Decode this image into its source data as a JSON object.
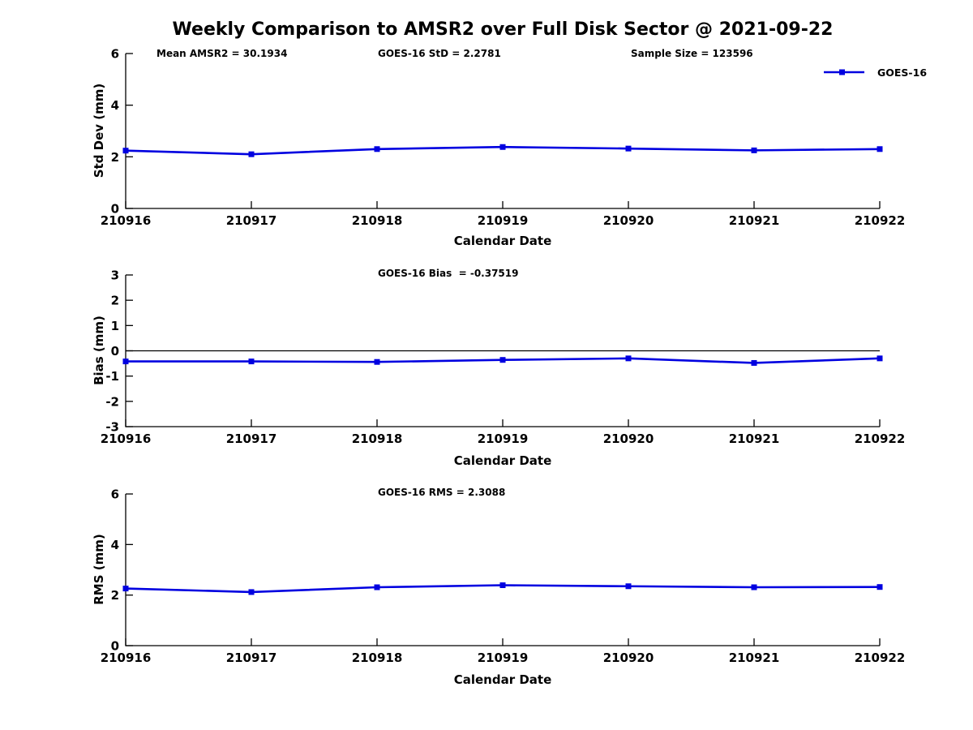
{
  "figure": {
    "title": "Weekly Comparison to AMSR2 over Full Disk Sector @ 2021-09-22"
  },
  "legend": {
    "label": "GOES-16"
  },
  "colors": {
    "series": "#0000e0",
    "axis": "#000000",
    "zero_line": "#000000",
    "background": "#ffffff"
  },
  "chart_data": [
    {
      "type": "line",
      "name": "std-dev",
      "annotations": [
        {
          "text": "Mean AMSR2 = 30.1934"
        },
        {
          "text": "GOES-16 StD = 2.2781"
        },
        {
          "text": "Sample Size = 123596"
        }
      ],
      "categories": [
        "210916",
        "210917",
        "210918",
        "210919",
        "210920",
        "210921",
        "210922"
      ],
      "series": [
        {
          "name": "GOES-16",
          "values": [
            2.24,
            2.1,
            2.3,
            2.38,
            2.32,
            2.25,
            2.3
          ]
        }
      ],
      "xlabel": "Calendar Date",
      "ylabel": "Std Dev (mm)",
      "ylim": [
        0,
        6
      ],
      "yticks": [
        0,
        2,
        4,
        6
      ],
      "zero_line": false,
      "legend_position": "top-right-outside",
      "grid": false
    },
    {
      "type": "line",
      "name": "bias",
      "annotations": [
        {
          "text": "GOES-16 Bias  = -0.37519"
        }
      ],
      "categories": [
        "210916",
        "210917",
        "210918",
        "210919",
        "210920",
        "210921",
        "210922"
      ],
      "series": [
        {
          "name": "GOES-16",
          "values": [
            -0.42,
            -0.42,
            -0.44,
            -0.36,
            -0.3,
            -0.48,
            -0.3
          ]
        }
      ],
      "xlabel": "Calendar Date",
      "ylabel": "Bias (mm)",
      "ylim": [
        -3,
        3
      ],
      "yticks": [
        -3,
        -2,
        -1,
        0,
        1,
        2,
        3
      ],
      "zero_line": true,
      "grid": false
    },
    {
      "type": "line",
      "name": "rms",
      "annotations": [
        {
          "text": "GOES-16 RMS = 2.3088"
        }
      ],
      "categories": [
        "210916",
        "210917",
        "210918",
        "210919",
        "210920",
        "210921",
        "210922"
      ],
      "series": [
        {
          "name": "GOES-16",
          "values": [
            2.26,
            2.12,
            2.31,
            2.39,
            2.35,
            2.31,
            2.32
          ]
        }
      ],
      "xlabel": "Calendar Date",
      "ylabel": "RMS (mm)",
      "ylim": [
        0,
        6
      ],
      "yticks": [
        0,
        2,
        4,
        6
      ],
      "zero_line": false,
      "grid": false
    }
  ]
}
